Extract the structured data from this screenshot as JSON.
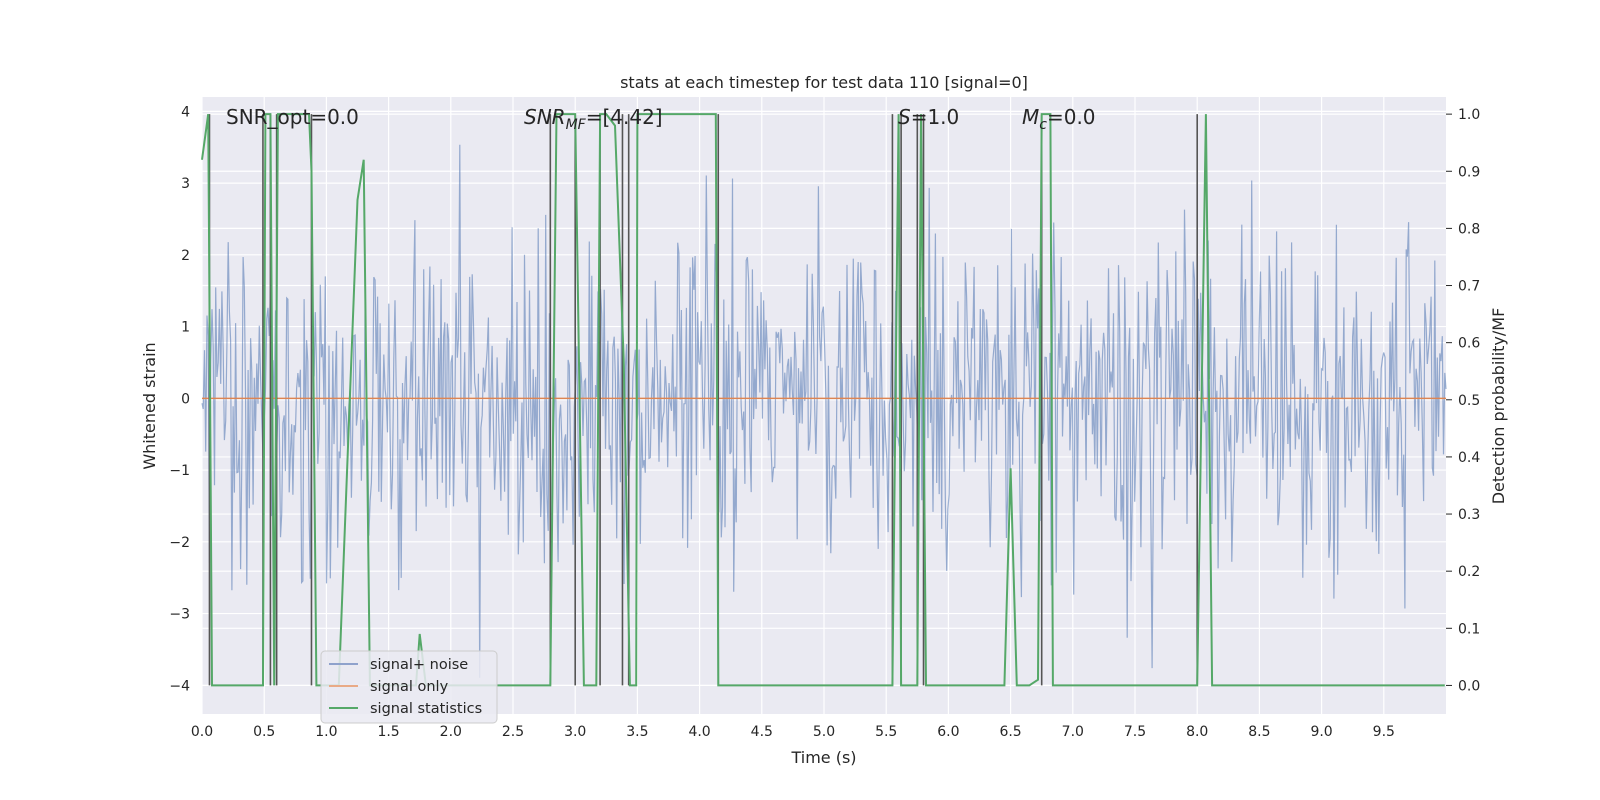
{
  "chart_data": {
    "type": "line",
    "title": "stats at each timestep for test data 110 [signal=0]",
    "xlabel": "Time (s)",
    "ylabel": "Whitened strain",
    "y2label": "Detection probability/MF",
    "xlim": [
      0,
      10
    ],
    "ylim": [
      -4.4,
      4.2
    ],
    "y2lim": [
      -0.05,
      1.03
    ],
    "x_ticks": [
      "0.0",
      "0.5",
      "1.0",
      "1.5",
      "2.0",
      "2.5",
      "3.0",
      "3.5",
      "4.0",
      "4.5",
      "5.0",
      "5.5",
      "6.0",
      "6.5",
      "7.0",
      "7.5",
      "8.0",
      "8.5",
      "9.0",
      "9.5"
    ],
    "y_ticks": [
      "4",
      "3",
      "2",
      "1",
      "0",
      "−1",
      "−2",
      "−3",
      "−4"
    ],
    "y2_ticks": [
      "1.0",
      "0.9",
      "0.8",
      "0.7",
      "0.6",
      "0.5",
      "0.4",
      "0.3",
      "0.2",
      "0.1",
      "0.0"
    ],
    "grid": true,
    "legend_position": "lower-left",
    "annotations": [
      {
        "text": "SNR_opt=0.0",
        "x": 0.19
      },
      {
        "text": "SNR_MF=[4.42]",
        "x": 2.6
      },
      {
        "text": "S=1.0",
        "x": 5.6
      },
      {
        "text": "M_c=0.0",
        "x": 6.6
      }
    ],
    "series": [
      {
        "name": "signal+ noise",
        "color": "#4C72B0",
        "axis": "left",
        "noise_sigma": 1.0,
        "n_samples": 1000
      },
      {
        "name": "signal only",
        "color": "#DD8452",
        "axis": "left",
        "constant": 0.0
      },
      {
        "name": "signal statistics",
        "color": "#55A868",
        "axis": "right",
        "x": [
          0.0,
          0.05,
          0.08,
          0.18,
          0.49,
          0.51,
          0.55,
          0.58,
          0.61,
          0.64,
          0.68,
          0.72,
          0.86,
          0.88,
          0.92,
          1.1,
          1.25,
          1.3,
          1.35,
          1.65,
          1.72,
          1.75,
          1.8,
          2.0,
          2.8,
          2.85,
          3.0,
          3.07,
          3.17,
          3.2,
          3.25,
          3.32,
          3.39,
          3.44,
          3.49,
          3.5,
          3.53,
          4.13,
          4.15,
          4.2,
          5.55,
          5.6,
          5.62,
          5.64,
          5.7,
          5.75,
          5.78,
          5.82,
          5.85,
          5.9,
          6.45,
          6.5,
          6.55,
          6.65,
          6.72,
          6.75,
          6.78,
          6.82,
          6.84,
          6.88,
          7.0,
          8.0,
          8.07,
          8.12,
          8.2,
          9.99
        ],
        "values": [
          0.92,
          1.0,
          0.0,
          0.0,
          0.0,
          1.0,
          1.0,
          0.0,
          1.0,
          1.0,
          1.0,
          1.0,
          1.0,
          0.9,
          0.0,
          0.0,
          0.85,
          0.92,
          0.0,
          0.0,
          0.0,
          0.09,
          0.0,
          0.0,
          0.0,
          1.0,
          1.0,
          0.0,
          0.0,
          1.0,
          1.0,
          0.98,
          0.57,
          0.0,
          0.0,
          1.0,
          1.0,
          1.0,
          0.0,
          0.0,
          0.0,
          1.0,
          0.0,
          0.0,
          0.0,
          0.0,
          1.0,
          0.0,
          0.0,
          0.0,
          0.0,
          0.38,
          0.0,
          0.0,
          0.01,
          1.0,
          1.0,
          1.0,
          0.0,
          0.0,
          0.0,
          0.0,
          1.0,
          0.0,
          0.0,
          0.0
        ]
      }
    ],
    "vlines": [
      0.06,
      0.49,
      0.55,
      0.6,
      0.88,
      2.8,
      3.0,
      3.2,
      3.38,
      3.43,
      4.15,
      5.55,
      5.62,
      5.75,
      5.8,
      6.75,
      8.0
    ],
    "legend": [
      "signal+ noise",
      "signal only",
      "signal statistics"
    ]
  }
}
